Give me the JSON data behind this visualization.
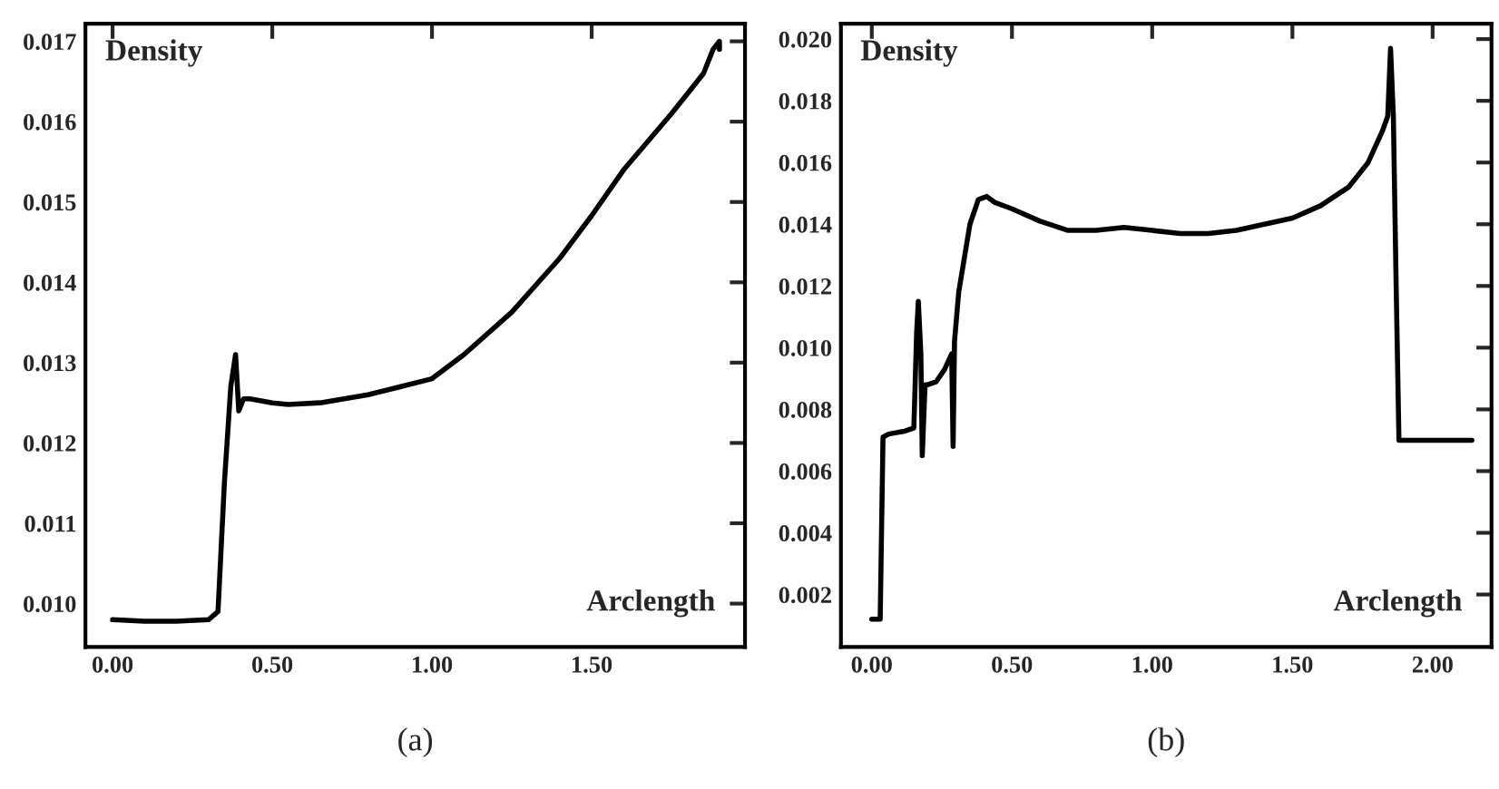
{
  "chart_data": [
    {
      "type": "line",
      "title": "(a)",
      "xlabel": "Arclength",
      "ylabel": "Density",
      "grid": false,
      "legend": false,
      "xlim": [
        -0.085,
        1.98
      ],
      "ylim": [
        0.00946,
        0.01722
      ],
      "xticks": [
        {
          "value": 0,
          "label": "0.00"
        },
        {
          "value": 0.5,
          "label": "0.50"
        },
        {
          "value": 1.0,
          "label": "1.00"
        },
        {
          "value": 1.5,
          "label": "1.50"
        }
      ],
      "yticks": [
        {
          "value": 0.01,
          "label": "0.010"
        },
        {
          "value": 0.011,
          "label": "0.011"
        },
        {
          "value": 0.012,
          "label": "0.012"
        },
        {
          "value": 0.013,
          "label": "0.013"
        },
        {
          "value": 0.014,
          "label": "0.014"
        },
        {
          "value": 0.015,
          "label": "0.015"
        },
        {
          "value": 0.016,
          "label": "0.016"
        },
        {
          "value": 0.017,
          "label": "0.017"
        }
      ],
      "series": [
        {
          "color": "#000000",
          "x": [
            0.0,
            0.1,
            0.2,
            0.3,
            0.33,
            0.35,
            0.37,
            0.385,
            0.395,
            0.41,
            0.43,
            0.5,
            0.55,
            0.65,
            0.8,
            0.9,
            1.0,
            1.1,
            1.25,
            1.4,
            1.5,
            1.6,
            1.75,
            1.85,
            1.88,
            1.9,
            1.9
          ],
          "values": [
            0.0098,
            0.00978,
            0.00978,
            0.0098,
            0.0099,
            0.0115,
            0.0127,
            0.0131,
            0.0124,
            0.01255,
            0.01255,
            0.0125,
            0.01248,
            0.0125,
            0.0126,
            0.0127,
            0.0128,
            0.0131,
            0.01363,
            0.0143,
            0.01483,
            0.0154,
            0.0161,
            0.0166,
            0.0169,
            0.017,
            0.0169
          ]
        }
      ]
    },
    {
      "type": "line",
      "title": "(b)",
      "xlabel": "Arclength",
      "ylabel": "Density",
      "grid": false,
      "legend": false,
      "xlim": [
        -0.11,
        2.21
      ],
      "ylim": [
        0.0003,
        0.0205
      ],
      "xticks": [
        {
          "value": 0,
          "label": "0.00"
        },
        {
          "value": 0.5,
          "label": "0.50"
        },
        {
          "value": 1.0,
          "label": "1.00"
        },
        {
          "value": 1.5,
          "label": "1.50"
        },
        {
          "value": 2.0,
          "label": "2.00"
        }
      ],
      "yticks": [
        {
          "value": 0.002,
          "label": "0.002"
        },
        {
          "value": 0.004,
          "label": "0.004"
        },
        {
          "value": 0.006,
          "label": "0.006"
        },
        {
          "value": 0.008,
          "label": "0.008"
        },
        {
          "value": 0.01,
          "label": "0.010"
        },
        {
          "value": 0.012,
          "label": "0.012"
        },
        {
          "value": 0.014,
          "label": "0.014"
        },
        {
          "value": 0.016,
          "label": "0.016"
        },
        {
          "value": 0.018,
          "label": "0.018"
        },
        {
          "value": 0.02,
          "label": "0.020"
        }
      ],
      "series": [
        {
          "color": "#000000",
          "x": [
            0.0,
            0.03,
            0.04,
            0.06,
            0.12,
            0.15,
            0.16,
            0.166,
            0.175,
            0.18,
            0.19,
            0.2,
            0.23,
            0.26,
            0.285,
            0.29,
            0.295,
            0.31,
            0.35,
            0.38,
            0.41,
            0.44,
            0.5,
            0.6,
            0.7,
            0.8,
            0.9,
            1.0,
            1.1,
            1.2,
            1.3,
            1.4,
            1.5,
            1.6,
            1.7,
            1.77,
            1.82,
            1.84,
            1.85,
            1.86,
            1.87,
            1.88,
            2.14
          ],
          "values": [
            0.0012,
            0.0012,
            0.0071,
            0.0072,
            0.0073,
            0.0074,
            0.0105,
            0.0115,
            0.0098,
            0.0065,
            0.0088,
            0.0088,
            0.0089,
            0.0093,
            0.0098,
            0.0068,
            0.0102,
            0.0118,
            0.014,
            0.0148,
            0.0149,
            0.0147,
            0.0145,
            0.0141,
            0.0138,
            0.0138,
            0.0139,
            0.0138,
            0.0137,
            0.0137,
            0.0138,
            0.014,
            0.0142,
            0.0146,
            0.0152,
            0.016,
            0.017,
            0.0175,
            0.0197,
            0.0175,
            0.012,
            0.007,
            0.007
          ]
        }
      ]
    }
  ]
}
